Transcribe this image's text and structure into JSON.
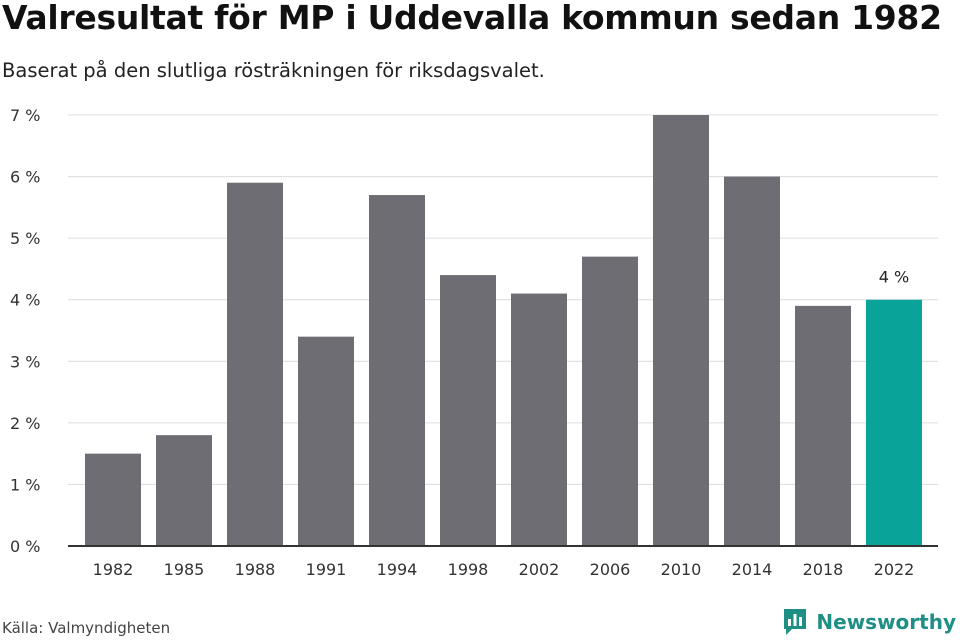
{
  "header": {
    "title": "Valresultat för MP i Uddevalla kommun sedan 1982",
    "subtitle": "Baserat på den slutliga rösträkningen för riksdagsvalet."
  },
  "footer": {
    "source": "Källa: Valmyndigheten",
    "brand": "Newsworthy"
  },
  "colors": {
    "bar": "#6e6d73",
    "highlight": "#0aa39a",
    "grid": "#dcdcdc",
    "axis": "#333333",
    "brand": "#1f8f86"
  },
  "chart_data": {
    "type": "bar",
    "categories": [
      "1982",
      "1985",
      "1988",
      "1991",
      "1994",
      "1998",
      "2002",
      "2006",
      "2010",
      "2014",
      "2018",
      "2022"
    ],
    "values": [
      1.5,
      1.8,
      5.9,
      3.4,
      5.7,
      4.4,
      4.1,
      4.7,
      7.0,
      6.0,
      3.9,
      4.0
    ],
    "highlight_index": 11,
    "highlight_label": "4 %",
    "ylim": [
      0,
      7
    ],
    "yticks": [
      "0 %",
      "1 %",
      "2 %",
      "3 %",
      "4 %",
      "5 %",
      "6 %",
      "7 %"
    ],
    "grid": true
  }
}
